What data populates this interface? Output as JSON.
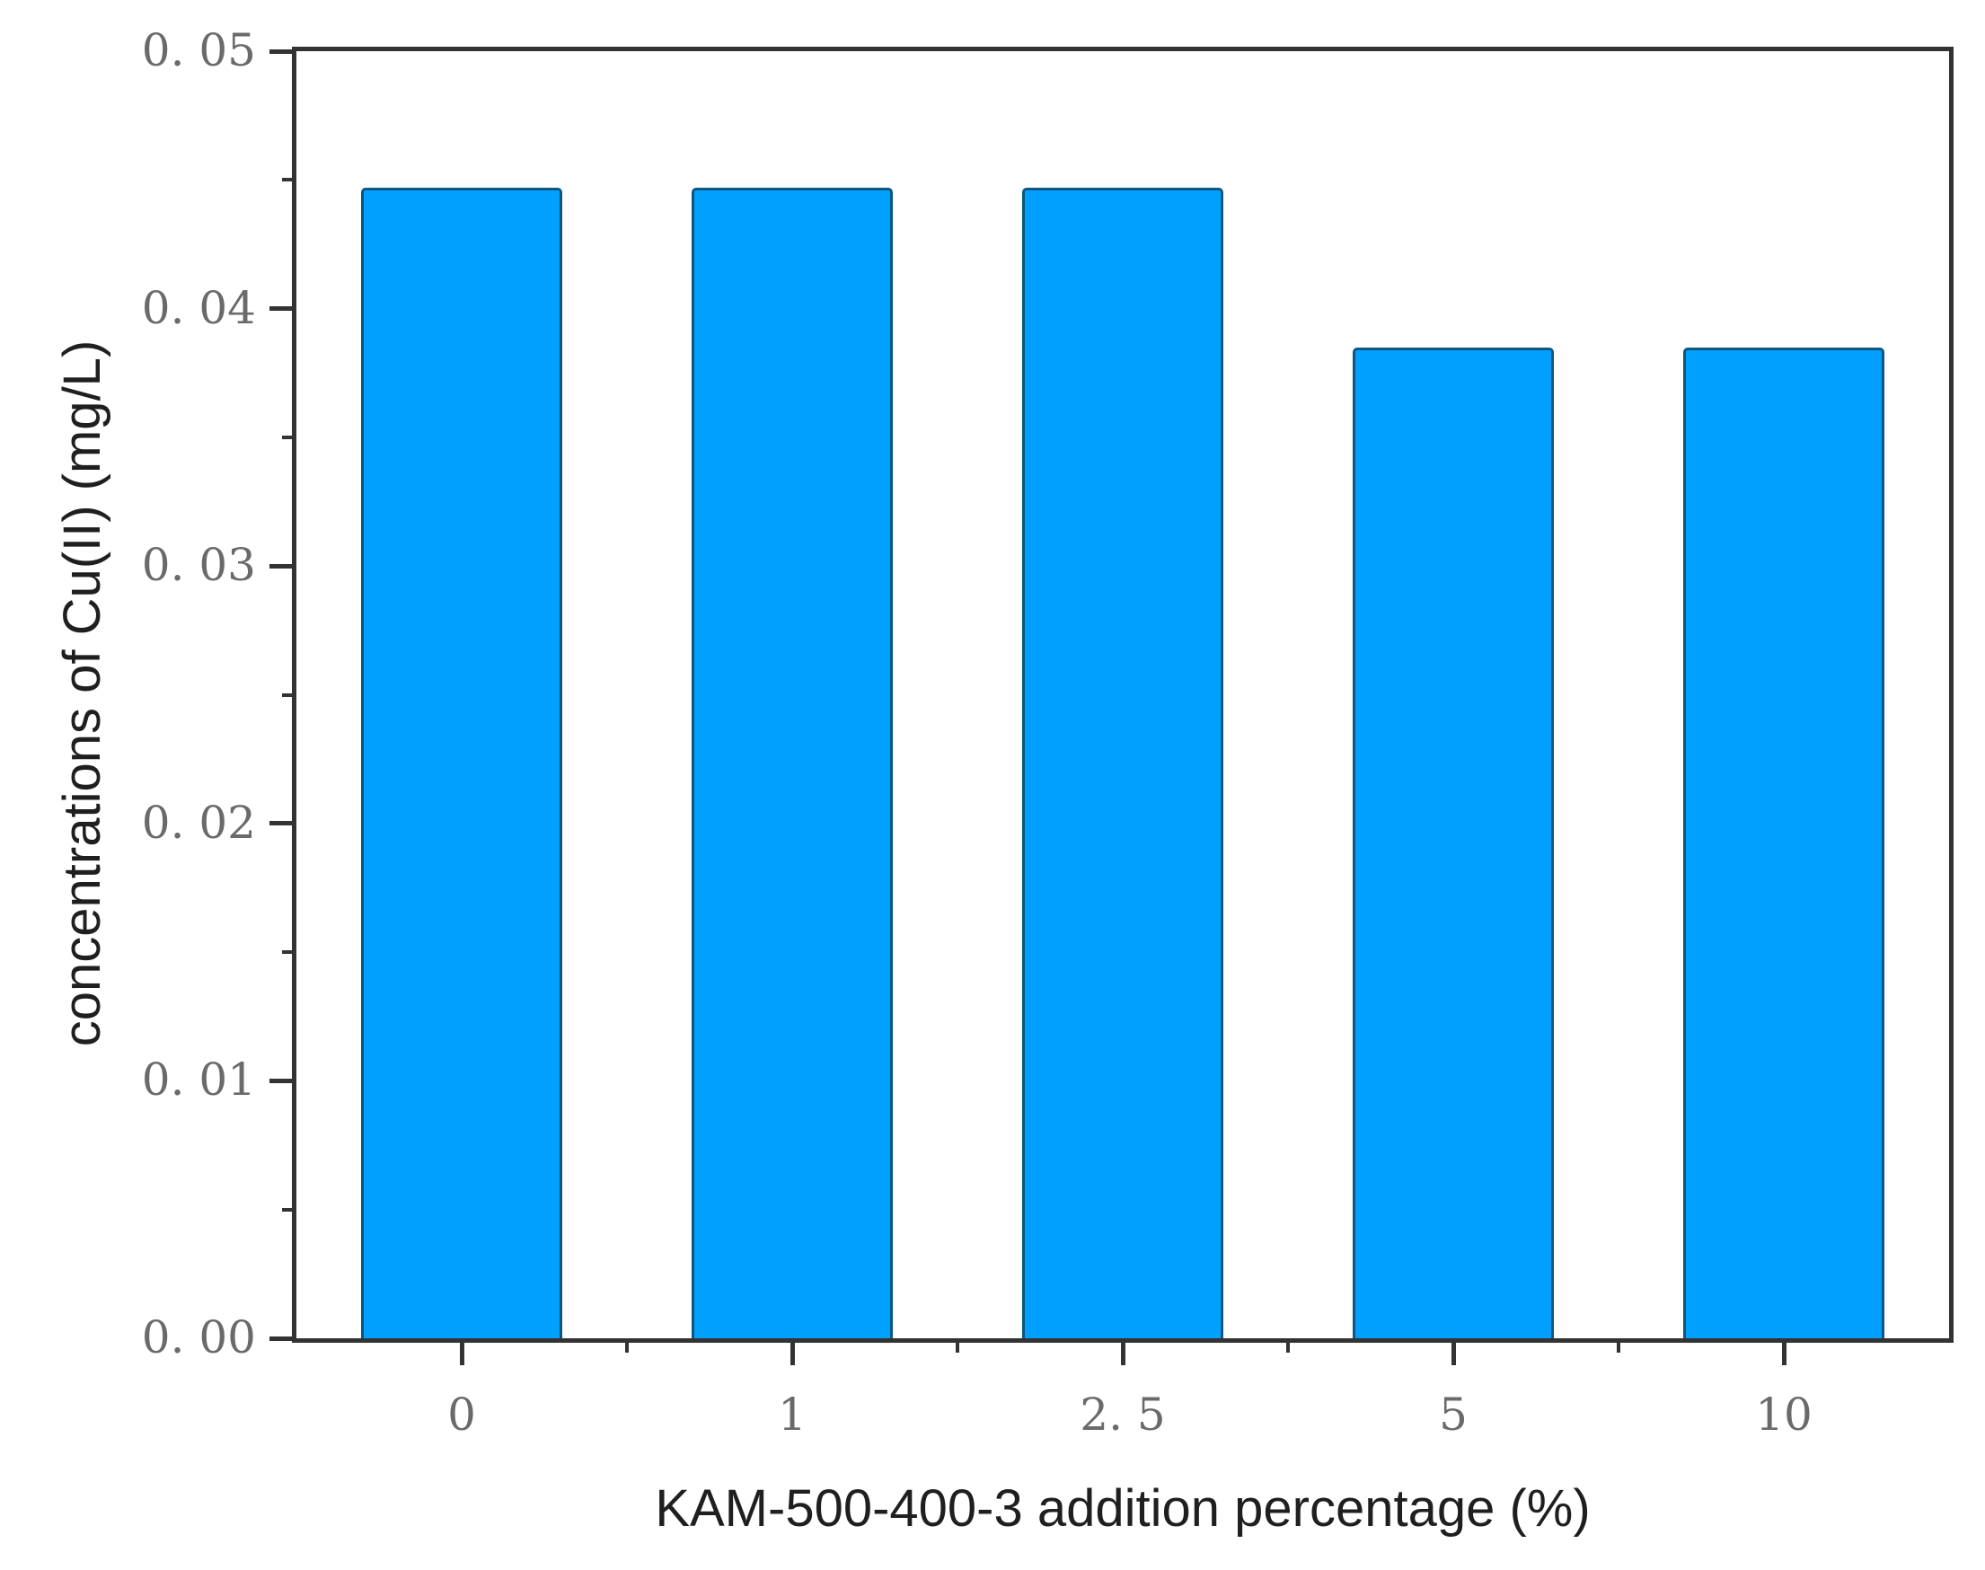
{
  "figure": {
    "background": "#ffffff"
  },
  "chart_data": {
    "type": "bar",
    "title": "",
    "categories": [
      0,
      1,
      2.5,
      5,
      10
    ],
    "x_tick_labels": [
      "0",
      "1",
      "2. 5",
      "5",
      "10"
    ],
    "values": [
      0.0447,
      0.0447,
      0.0447,
      0.0385,
      0.0385
    ],
    "xlabel": "KAM-500-400-3 addition percentage （%）",
    "ylabel": "concentrations of Cu(II) （mg/L）",
    "ylim": [
      0,
      0.05
    ],
    "y_major_ticks": [
      0,
      0.01,
      0.02,
      0.03,
      0.04,
      0.05
    ],
    "y_tick_labels": [
      "0. 00",
      "0. 01",
      "0. 02",
      "0. 03",
      "0. 04",
      "0. 05"
    ],
    "y_minor_tick_step": 0.005,
    "x_minor_ticks_between_categories": true,
    "grid": false,
    "legend": null,
    "bar_width_fraction": 0.61,
    "bar_color": "#00A0FF",
    "bar_edge_color": "#0E567F",
    "axis_color": "#333333",
    "tick_label_color": "#6a6a6a",
    "axis_label_color": "#1f1f1f"
  }
}
